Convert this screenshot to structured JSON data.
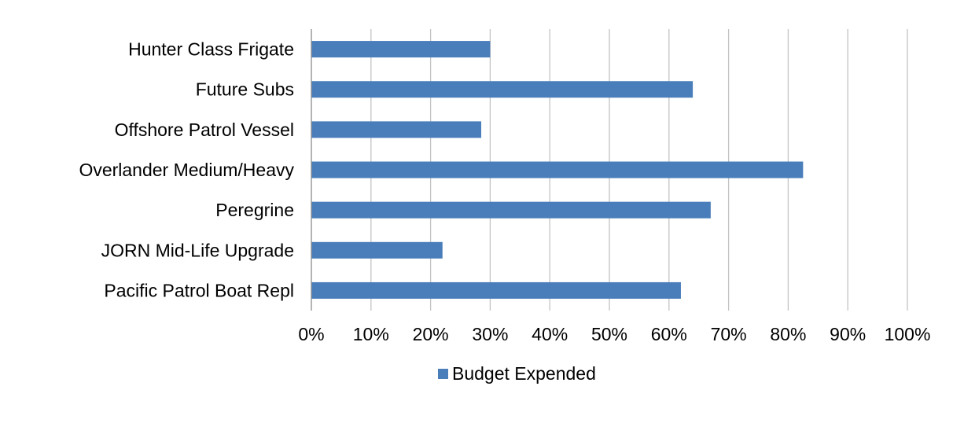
{
  "chart_data": {
    "type": "bar",
    "orientation": "horizontal",
    "categories": [
      "Hunter Class Frigate",
      "Future Subs",
      "Offshore Patrol Vessel",
      "Overlander Medium/Heavy",
      "Peregrine",
      "JORN Mid-Life Upgrade",
      "Pacific Patrol Boat Repl"
    ],
    "series": [
      {
        "name": "Budget Expended",
        "values": [
          0.3,
          0.64,
          0.285,
          0.825,
          0.67,
          0.22,
          0.62
        ],
        "color": "#4a7ebb"
      }
    ],
    "x_ticks": [
      "0%",
      "10%",
      "20%",
      "30%",
      "40%",
      "50%",
      "60%",
      "70%",
      "80%",
      "90%",
      "100%"
    ],
    "xlim": [
      0,
      1
    ],
    "grid": true,
    "legend_position": "bottom",
    "title": "",
    "xlabel": "",
    "ylabel": ""
  }
}
